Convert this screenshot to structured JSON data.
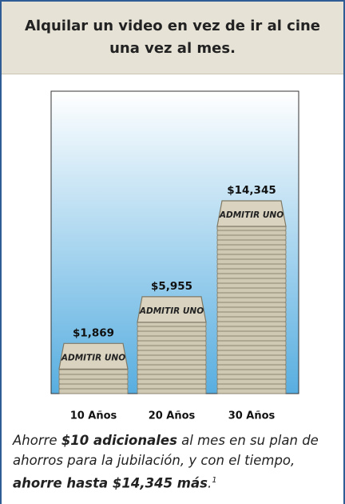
{
  "chart_data": {
    "type": "ticket-stack",
    "title": "Alquilar un video en vez de ir al cine una vez al mes.",
    "categories": [
      "10 Años",
      "20 Años",
      "30 Años"
    ],
    "values": [
      1869,
      5955,
      14345
    ],
    "value_labels": [
      "$1,869",
      "$5,955",
      "$14,345"
    ],
    "ticket_label": "ADMITIR UNO",
    "color": "#d9d3c0"
  },
  "footer": {
    "parts": [
      "Ahorre ",
      "$10 adicionales",
      " al mes en su plan de ahorros para la jubilación, y con el tiempo, ",
      "ahorre hasta $14,345 más",
      "."
    ],
    "superscript": "1"
  }
}
